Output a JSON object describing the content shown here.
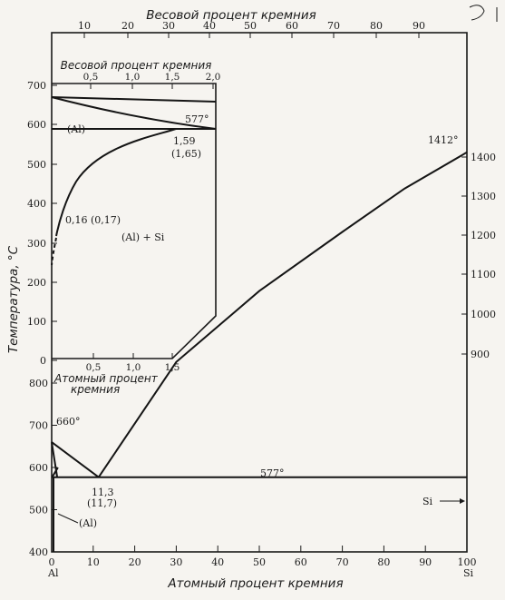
{
  "figure": {
    "top_axis_title": "Весовой процент кремния",
    "bottom_axis_title": "Атомный процент кремния",
    "left_axis_title": "Температура, °С",
    "top_ticks": [
      "10",
      "20",
      "30",
      "40",
      "50",
      "60",
      "70",
      "80",
      "90"
    ],
    "bottom_ticks": [
      "0",
      "10",
      "20",
      "30",
      "40",
      "50",
      "60",
      "70",
      "80",
      "90",
      "100"
    ],
    "left_ticks": [
      "400",
      "500",
      "600",
      "700",
      "800",
      "900",
      "1000",
      "1100",
      "1200",
      "1300",
      "1400"
    ],
    "right_ticks": [
      "900",
      "1000",
      "1100",
      "1200",
      "1300",
      "1400"
    ],
    "element_left": "Al",
    "element_right": "Si"
  },
  "inset": {
    "top_axis_title": "Весовой процент кремния",
    "bottom_axis_title_line1": "Атомный процент",
    "bottom_axis_title_line2": "кремния",
    "top_ticks": [
      "0,5",
      "1,0",
      "1,5",
      "2,0"
    ],
    "bottom_ticks": [
      "0,5",
      "1,0",
      "1,5"
    ],
    "left_ticks": [
      "700",
      "600",
      "500",
      "400",
      "300",
      "200",
      "100",
      "0"
    ],
    "phase_al": "(Al)",
    "phase_al_si": "(Al) + Si",
    "eutectic_temp": "577°",
    "solubility_value": "1,59",
    "solubility_value_alt": "(1,65)",
    "low_solubility": "0,16 (0,17)"
  },
  "annotations": {
    "al_melting": "660°",
    "eutectic_temp": "577°",
    "eutectic_comp": "11,3",
    "eutectic_comp_alt": "(11,7)",
    "al_phase": "(Al)",
    "si_melting": "1412°",
    "si_phase": "Si"
  },
  "chart_data": {
    "type": "line",
    "title": "",
    "xlabel": "Атомный процент кремния",
    "ylabel": "Температура, °С",
    "xlim": [
      0,
      100
    ],
    "ylim": [
      400,
      1450
    ],
    "series": [
      {
        "name": "",
        "x": [
          0,
          11.3
        ],
        "y": [
          660,
          577
        ]
      },
      {
        "name": "",
        "x": [
          11.3,
          30,
          50,
          70,
          85,
          100
        ],
        "y": [
          577,
          850,
          1060,
          1210,
          1320,
          1412
        ]
      },
      {
        "name": "",
        "x": [
          0.1,
          100
        ],
        "y": [
          577,
          577
        ]
      },
      {
        "name": "",
        "x": [
          0.1,
          1.5
        ],
        "y": [
          577,
          600
        ]
      }
    ]
  },
  "colors": {
    "ink": "#1a1a1a",
    "paper": "#f6f4f0"
  }
}
